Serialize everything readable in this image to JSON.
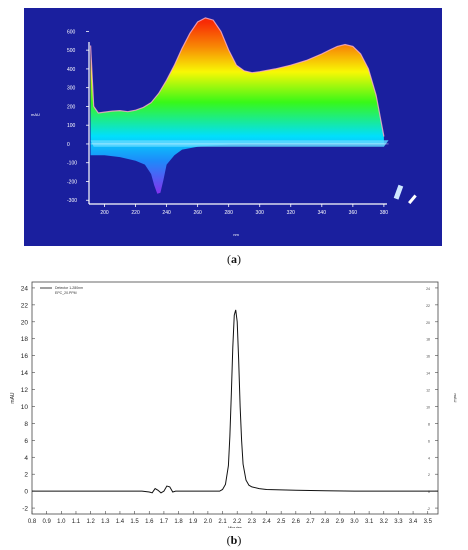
{
  "captions": {
    "a": "a",
    "b": "b"
  },
  "chart_data": [
    {
      "type": "area",
      "title": "",
      "panel": "a",
      "xlabel": "nm",
      "ylabel": "mAU",
      "x_ticks": [
        "200",
        "220",
        "240",
        "260",
        "280",
        "300",
        "320",
        "340",
        "360",
        "380"
      ],
      "y_ticks": [
        "600",
        "500",
        "400",
        "300",
        "200",
        "100",
        "0",
        "-100",
        "-200",
        "-300"
      ],
      "xlim": [
        190,
        382
      ],
      "ylim": [
        -320,
        650
      ],
      "grid": false,
      "background": "#1a1f9e",
      "color_scale": [
        "#a020f0",
        "#1e90ff",
        "#00e5ff",
        "#39ff14",
        "#ffff00",
        "#ff8c00",
        "#ff2a00"
      ],
      "series": [
        {
          "x": [
            191,
            193,
            196,
            200,
            205,
            210,
            215,
            220,
            225,
            230,
            235,
            240,
            245,
            250,
            255,
            260,
            265,
            270,
            275,
            280,
            285,
            290,
            295,
            300,
            310,
            320,
            330,
            340,
            345,
            350,
            355,
            360,
            365,
            370,
            375,
            380
          ],
          "values": [
            525,
            200,
            165,
            170,
            175,
            178,
            172,
            180,
            195,
            220,
            270,
            340,
            420,
            510,
            590,
            650,
            672,
            660,
            600,
            500,
            420,
            390,
            380,
            385,
            400,
            420,
            445,
            480,
            500,
            520,
            530,
            520,
            480,
            400,
            260,
            40
          ]
        },
        {
          "x": [
            191,
            200,
            210,
            220,
            226,
            230,
            232,
            234,
            236,
            238,
            240,
            245,
            250,
            260,
            270,
            280,
            290
          ],
          "values": [
            -60,
            -60,
            -70,
            -90,
            -110,
            -160,
            -220,
            -265,
            -260,
            -190,
            -110,
            -60,
            -30,
            -15,
            -8,
            -3,
            0
          ]
        }
      ]
    },
    {
      "type": "line",
      "title": "",
      "panel": "b",
      "xlabel": "Minutes",
      "ylabel": "mAU",
      "ylabel_right": "mAU",
      "legend": [
        "Detector 1-280nm",
        "EPC_20.PPM"
      ],
      "legend_position": "top-left",
      "x_ticks": [
        "0.8",
        "0.9",
        "1.0",
        "1.1",
        "1.2",
        "1.3",
        "1.4",
        "1.5",
        "1.6",
        "1.7",
        "1.8",
        "1.9",
        "2.0",
        "2.1",
        "2.2",
        "2.3",
        "2.4",
        "2.5",
        "2.6",
        "2.7",
        "2.8",
        "2.9",
        "3.0",
        "3.1",
        "3.2",
        "3.3",
        "3.4",
        "3.5"
      ],
      "y_ticks": [
        "24",
        "22",
        "20",
        "18",
        "16",
        "14",
        "12",
        "10",
        "8",
        "6",
        "4",
        "2",
        "0",
        "-2"
      ],
      "xlim": [
        0.8,
        3.57
      ],
      "ylim": [
        -2.7,
        24.7
      ],
      "grid": false,
      "series": [
        {
          "x": [
            0.8,
            1.0,
            1.2,
            1.4,
            1.55,
            1.6,
            1.62,
            1.64,
            1.66,
            1.68,
            1.7,
            1.72,
            1.74,
            1.76,
            1.78,
            1.8,
            1.9,
            2.0,
            2.08,
            2.1,
            2.12,
            2.14,
            2.15,
            2.16,
            2.17,
            2.18,
            2.19,
            2.2,
            2.21,
            2.22,
            2.23,
            2.24,
            2.26,
            2.28,
            2.3,
            2.35,
            2.4,
            2.5,
            2.6,
            2.8,
            3.0,
            3.3,
            3.57
          ],
          "values": [
            0.0,
            0.0,
            0.0,
            0.0,
            0.0,
            -0.1,
            -0.2,
            0.3,
            0.1,
            -0.2,
            0.0,
            0.6,
            0.5,
            -0.1,
            0.0,
            0.0,
            0.0,
            0.0,
            0.0,
            0.2,
            0.8,
            3.0,
            6.5,
            11.5,
            17.0,
            20.8,
            21.4,
            20.0,
            15.5,
            10.0,
            6.0,
            3.2,
            1.3,
            0.7,
            0.5,
            0.3,
            0.2,
            0.15,
            0.1,
            0.05,
            0.0,
            0.0,
            0.0
          ]
        }
      ]
    }
  ]
}
